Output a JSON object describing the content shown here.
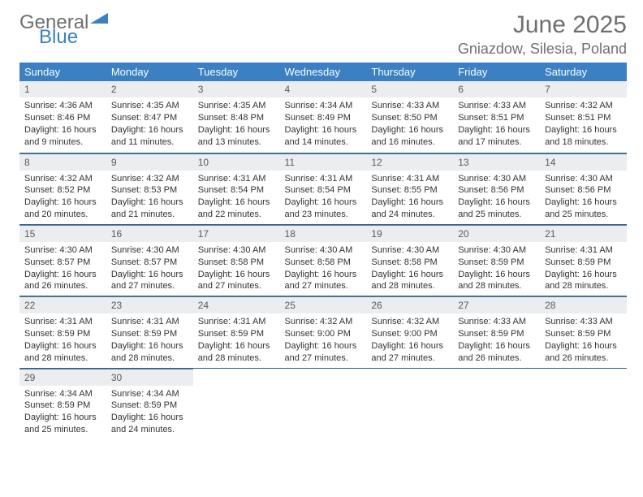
{
  "logo": {
    "text_gray": "General",
    "text_blue": "Blue",
    "tri_color": "#3a80c2",
    "gray_color": "#6f6f6f"
  },
  "header": {
    "title": "June 2025",
    "location": "Gniazdow, Silesia, Poland"
  },
  "colors": {
    "header_bg": "#3a80c2",
    "header_text": "#ffffff",
    "daynum_bg": "#ebedef",
    "daynum_text": "#5a5a5a",
    "row_border": "#2a5f8a",
    "body_text": "#333333",
    "page_bg": "#ffffff"
  },
  "weekdays": [
    "Sunday",
    "Monday",
    "Tuesday",
    "Wednesday",
    "Thursday",
    "Friday",
    "Saturday"
  ],
  "weeks": [
    [
      {
        "n": "1",
        "sr": "Sunrise: 4:36 AM",
        "ss": "Sunset: 8:46 PM",
        "dl": "Daylight: 16 hours and 9 minutes."
      },
      {
        "n": "2",
        "sr": "Sunrise: 4:35 AM",
        "ss": "Sunset: 8:47 PM",
        "dl": "Daylight: 16 hours and 11 minutes."
      },
      {
        "n": "3",
        "sr": "Sunrise: 4:35 AM",
        "ss": "Sunset: 8:48 PM",
        "dl": "Daylight: 16 hours and 13 minutes."
      },
      {
        "n": "4",
        "sr": "Sunrise: 4:34 AM",
        "ss": "Sunset: 8:49 PM",
        "dl": "Daylight: 16 hours and 14 minutes."
      },
      {
        "n": "5",
        "sr": "Sunrise: 4:33 AM",
        "ss": "Sunset: 8:50 PM",
        "dl": "Daylight: 16 hours and 16 minutes."
      },
      {
        "n": "6",
        "sr": "Sunrise: 4:33 AM",
        "ss": "Sunset: 8:51 PM",
        "dl": "Daylight: 16 hours and 17 minutes."
      },
      {
        "n": "7",
        "sr": "Sunrise: 4:32 AM",
        "ss": "Sunset: 8:51 PM",
        "dl": "Daylight: 16 hours and 18 minutes."
      }
    ],
    [
      {
        "n": "8",
        "sr": "Sunrise: 4:32 AM",
        "ss": "Sunset: 8:52 PM",
        "dl": "Daylight: 16 hours and 20 minutes."
      },
      {
        "n": "9",
        "sr": "Sunrise: 4:32 AM",
        "ss": "Sunset: 8:53 PM",
        "dl": "Daylight: 16 hours and 21 minutes."
      },
      {
        "n": "10",
        "sr": "Sunrise: 4:31 AM",
        "ss": "Sunset: 8:54 PM",
        "dl": "Daylight: 16 hours and 22 minutes."
      },
      {
        "n": "11",
        "sr": "Sunrise: 4:31 AM",
        "ss": "Sunset: 8:54 PM",
        "dl": "Daylight: 16 hours and 23 minutes."
      },
      {
        "n": "12",
        "sr": "Sunrise: 4:31 AM",
        "ss": "Sunset: 8:55 PM",
        "dl": "Daylight: 16 hours and 24 minutes."
      },
      {
        "n": "13",
        "sr": "Sunrise: 4:30 AM",
        "ss": "Sunset: 8:56 PM",
        "dl": "Daylight: 16 hours and 25 minutes."
      },
      {
        "n": "14",
        "sr": "Sunrise: 4:30 AM",
        "ss": "Sunset: 8:56 PM",
        "dl": "Daylight: 16 hours and 25 minutes."
      }
    ],
    [
      {
        "n": "15",
        "sr": "Sunrise: 4:30 AM",
        "ss": "Sunset: 8:57 PM",
        "dl": "Daylight: 16 hours and 26 minutes."
      },
      {
        "n": "16",
        "sr": "Sunrise: 4:30 AM",
        "ss": "Sunset: 8:57 PM",
        "dl": "Daylight: 16 hours and 27 minutes."
      },
      {
        "n": "17",
        "sr": "Sunrise: 4:30 AM",
        "ss": "Sunset: 8:58 PM",
        "dl": "Daylight: 16 hours and 27 minutes."
      },
      {
        "n": "18",
        "sr": "Sunrise: 4:30 AM",
        "ss": "Sunset: 8:58 PM",
        "dl": "Daylight: 16 hours and 27 minutes."
      },
      {
        "n": "19",
        "sr": "Sunrise: 4:30 AM",
        "ss": "Sunset: 8:58 PM",
        "dl": "Daylight: 16 hours and 28 minutes."
      },
      {
        "n": "20",
        "sr": "Sunrise: 4:30 AM",
        "ss": "Sunset: 8:59 PM",
        "dl": "Daylight: 16 hours and 28 minutes."
      },
      {
        "n": "21",
        "sr": "Sunrise: 4:31 AM",
        "ss": "Sunset: 8:59 PM",
        "dl": "Daylight: 16 hours and 28 minutes."
      }
    ],
    [
      {
        "n": "22",
        "sr": "Sunrise: 4:31 AM",
        "ss": "Sunset: 8:59 PM",
        "dl": "Daylight: 16 hours and 28 minutes."
      },
      {
        "n": "23",
        "sr": "Sunrise: 4:31 AM",
        "ss": "Sunset: 8:59 PM",
        "dl": "Daylight: 16 hours and 28 minutes."
      },
      {
        "n": "24",
        "sr": "Sunrise: 4:31 AM",
        "ss": "Sunset: 8:59 PM",
        "dl": "Daylight: 16 hours and 28 minutes."
      },
      {
        "n": "25",
        "sr": "Sunrise: 4:32 AM",
        "ss": "Sunset: 9:00 PM",
        "dl": "Daylight: 16 hours and 27 minutes."
      },
      {
        "n": "26",
        "sr": "Sunrise: 4:32 AM",
        "ss": "Sunset: 9:00 PM",
        "dl": "Daylight: 16 hours and 27 minutes."
      },
      {
        "n": "27",
        "sr": "Sunrise: 4:33 AM",
        "ss": "Sunset: 8:59 PM",
        "dl": "Daylight: 16 hours and 26 minutes."
      },
      {
        "n": "28",
        "sr": "Sunrise: 4:33 AM",
        "ss": "Sunset: 8:59 PM",
        "dl": "Daylight: 16 hours and 26 minutes."
      }
    ],
    [
      {
        "n": "29",
        "sr": "Sunrise: 4:34 AM",
        "ss": "Sunset: 8:59 PM",
        "dl": "Daylight: 16 hours and 25 minutes."
      },
      {
        "n": "30",
        "sr": "Sunrise: 4:34 AM",
        "ss": "Sunset: 8:59 PM",
        "dl": "Daylight: 16 hours and 24 minutes."
      },
      null,
      null,
      null,
      null,
      null
    ]
  ]
}
